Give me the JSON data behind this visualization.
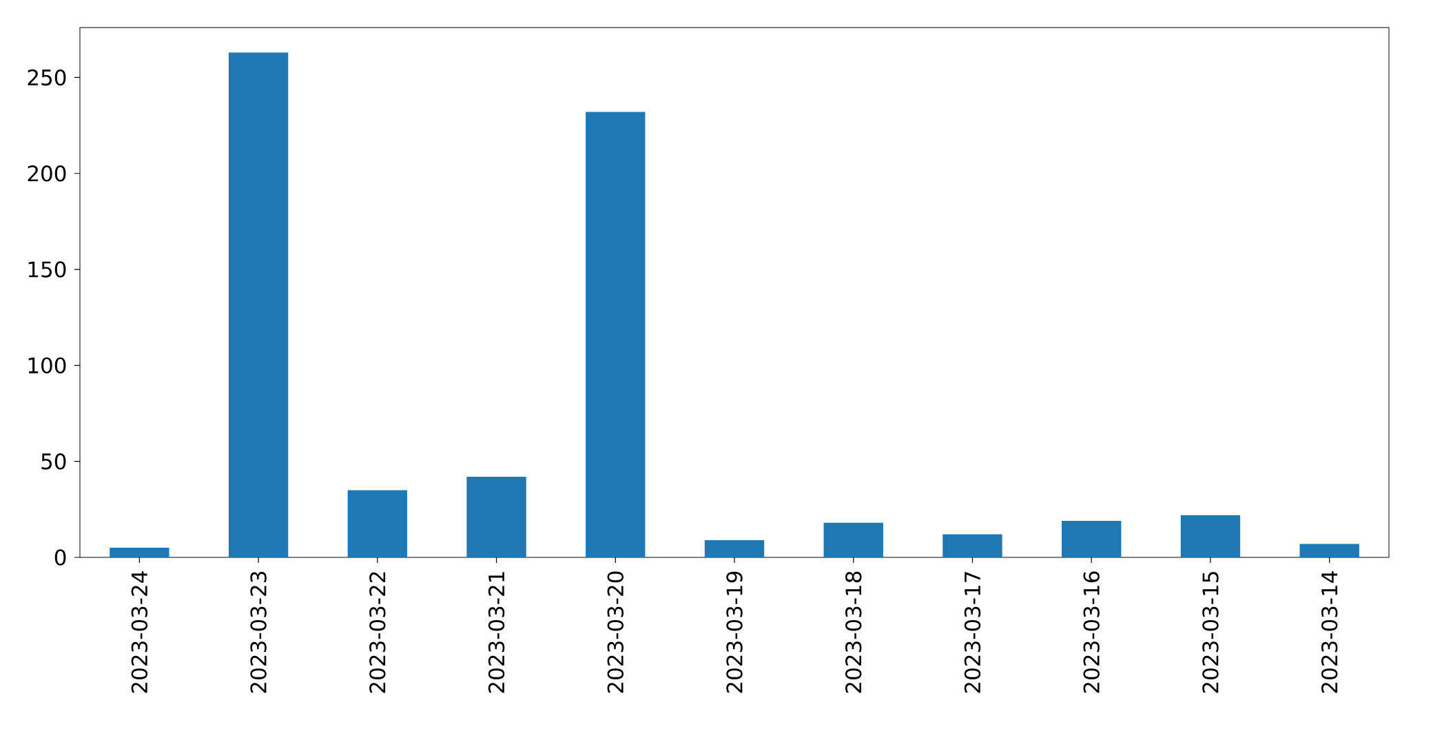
{
  "chart_data": {
    "type": "bar",
    "categories": [
      "2023-03-24",
      "2023-03-23",
      "2023-03-22",
      "2023-03-21",
      "2023-03-20",
      "2023-03-19",
      "2023-03-18",
      "2023-03-17",
      "2023-03-16",
      "2023-03-15",
      "2023-03-14"
    ],
    "values": [
      5,
      263,
      35,
      42,
      232,
      9,
      18,
      12,
      19,
      22,
      7
    ],
    "color": "#1f77b4",
    "ylim": [
      0,
      276
    ],
    "yticks": [
      0,
      50,
      100,
      150,
      200,
      250
    ]
  }
}
